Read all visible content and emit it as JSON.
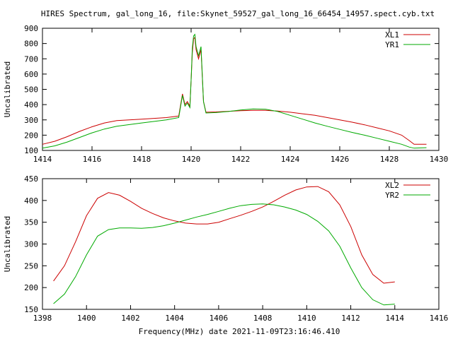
{
  "title": "HIRES Spectrum, gal_long_16, file:Skynet_59527_gal_long_16_66454_14957.spect.cyb.txt",
  "footer_xlabel": "Frequency(MHz) date 2021-11-09T23:16:46.410",
  "chart_data": [
    {
      "type": "line",
      "ylabel": "Uncalibrated",
      "xlim": [
        1414,
        1430
      ],
      "ylim": [
        100,
        900
      ],
      "xticks": [
        1414,
        1416,
        1418,
        1420,
        1422,
        1424,
        1426,
        1428,
        1430
      ],
      "yticks": [
        100,
        200,
        300,
        400,
        500,
        600,
        700,
        800,
        900
      ],
      "legend_position": "top-right",
      "series": [
        {
          "name": "XL1",
          "color": "#cc0000",
          "x": [
            1414.0,
            1414.5,
            1415.0,
            1415.5,
            1416.0,
            1416.5,
            1417.0,
            1418.0,
            1419.0,
            1419.5,
            1419.65,
            1419.75,
            1419.85,
            1419.95,
            1420.0,
            1420.05,
            1420.1,
            1420.15,
            1420.2,
            1420.3,
            1420.4,
            1420.5,
            1420.6,
            1421.0,
            1421.5,
            1422.0,
            1422.5,
            1423.0,
            1423.5,
            1424.0,
            1424.5,
            1425.0,
            1425.5,
            1426.0,
            1426.5,
            1427.0,
            1427.5,
            1428.0,
            1428.5,
            1428.8,
            1429.0,
            1429.5
          ],
          "y": [
            140,
            160,
            190,
            225,
            255,
            280,
            295,
            305,
            315,
            325,
            470,
            400,
            420,
            390,
            560,
            740,
            830,
            840,
            760,
            700,
            760,
            420,
            350,
            352,
            356,
            360,
            362,
            362,
            358,
            350,
            340,
            330,
            315,
            300,
            285,
            268,
            248,
            228,
            200,
            165,
            140,
            140
          ]
        },
        {
          "name": "YR1",
          "color": "#00aa00",
          "x": [
            1414.0,
            1414.5,
            1415.0,
            1415.5,
            1416.0,
            1416.5,
            1417.0,
            1418.0,
            1419.0,
            1419.5,
            1419.65,
            1419.75,
            1419.85,
            1419.95,
            1420.0,
            1420.05,
            1420.1,
            1420.15,
            1420.2,
            1420.3,
            1420.4,
            1420.5,
            1420.6,
            1421.0,
            1421.5,
            1422.0,
            1422.5,
            1423.0,
            1423.5,
            1424.0,
            1424.5,
            1425.0,
            1425.5,
            1426.0,
            1426.5,
            1427.0,
            1427.5,
            1428.0,
            1428.5,
            1428.8,
            1429.0,
            1429.5
          ],
          "y": [
            115,
            130,
            155,
            185,
            215,
            240,
            258,
            280,
            300,
            315,
            460,
            390,
            410,
            380,
            560,
            770,
            850,
            860,
            780,
            720,
            780,
            420,
            345,
            348,
            355,
            365,
            372,
            370,
            355,
            330,
            305,
            280,
            258,
            238,
            218,
            200,
            180,
            160,
            140,
            122,
            115,
            118
          ]
        }
      ]
    },
    {
      "type": "line",
      "xlabel": "Frequency(MHz) date 2021-11-09T23:16:46.410",
      "ylabel": "Uncalibrated",
      "xlim": [
        1398,
        1416
      ],
      "ylim": [
        150,
        450
      ],
      "xticks": [
        1398,
        1400,
        1402,
        1404,
        1406,
        1408,
        1410,
        1412,
        1414,
        1416
      ],
      "yticks": [
        150,
        200,
        250,
        300,
        350,
        400,
        450
      ],
      "legend_position": "top-right",
      "series": [
        {
          "name": "XL2",
          "color": "#cc0000",
          "x": [
            1398.5,
            1399.0,
            1399.5,
            1400.0,
            1400.5,
            1401.0,
            1401.5,
            1402.0,
            1402.5,
            1403.0,
            1403.5,
            1404.0,
            1404.5,
            1405.0,
            1405.5,
            1406.0,
            1406.5,
            1407.0,
            1407.5,
            1408.0,
            1408.5,
            1409.0,
            1409.5,
            1410.0,
            1410.5,
            1411.0,
            1411.5,
            1412.0,
            1412.5,
            1413.0,
            1413.5,
            1414.0
          ],
          "y": [
            215,
            250,
            305,
            365,
            405,
            418,
            412,
            398,
            382,
            370,
            360,
            353,
            348,
            346,
            346,
            350,
            358,
            366,
            375,
            385,
            398,
            412,
            424,
            431,
            432,
            420,
            390,
            340,
            275,
            230,
            210,
            213
          ]
        },
        {
          "name": "YR2",
          "color": "#00aa00",
          "x": [
            1398.5,
            1399.0,
            1399.5,
            1400.0,
            1400.5,
            1401.0,
            1401.5,
            1402.0,
            1402.5,
            1403.0,
            1403.5,
            1404.0,
            1404.5,
            1405.0,
            1405.5,
            1406.0,
            1406.5,
            1407.0,
            1407.5,
            1408.0,
            1408.5,
            1409.0,
            1409.5,
            1410.0,
            1410.5,
            1411.0,
            1411.5,
            1412.0,
            1412.5,
            1413.0,
            1413.5,
            1414.0
          ],
          "y": [
            163,
            185,
            225,
            275,
            318,
            333,
            337,
            337,
            336,
            338,
            342,
            348,
            355,
            362,
            368,
            375,
            382,
            388,
            391,
            392,
            390,
            385,
            378,
            368,
            352,
            330,
            295,
            245,
            200,
            172,
            160,
            162
          ]
        }
      ]
    }
  ]
}
